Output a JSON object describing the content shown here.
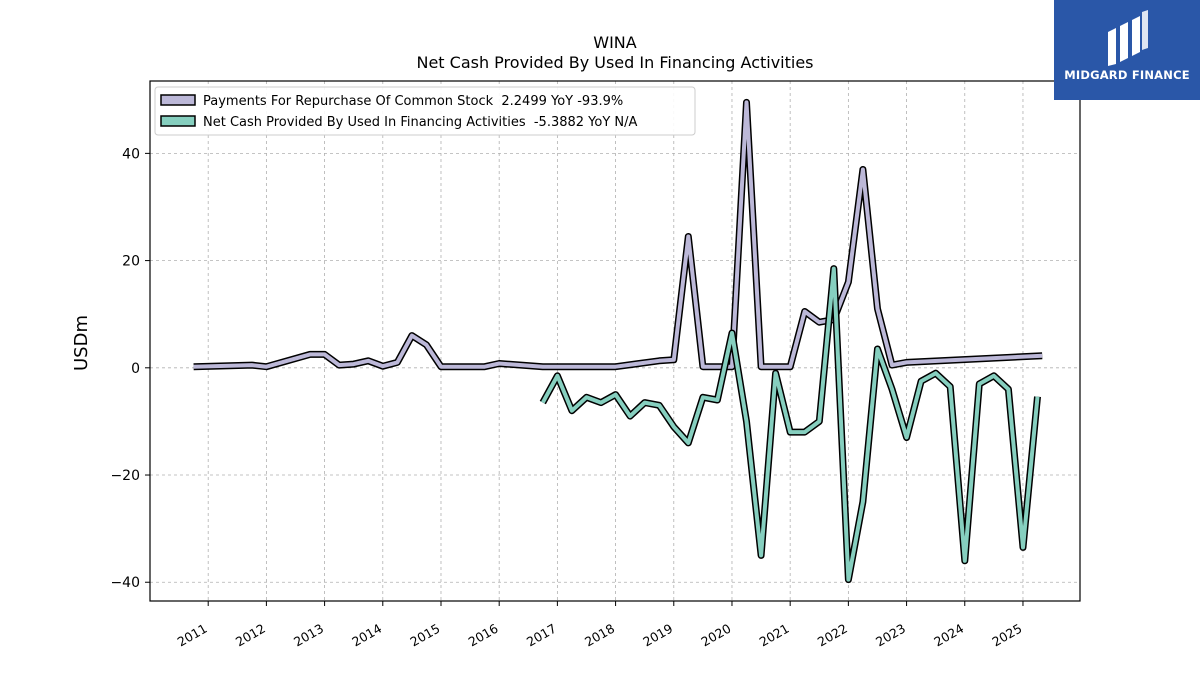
{
  "chart_data": {
    "type": "line",
    "title": "WINA",
    "subtitle": "Net Cash Provided By Used In Financing Activities",
    "ylabel": "USDm",
    "xlabel": "",
    "xlim": [
      2010.0,
      2025.98
    ],
    "ylim": [
      -43.5,
      53.5
    ],
    "yticks": [
      -40,
      -20,
      0,
      20,
      40
    ],
    "ytick_labels": [
      "−40",
      "−20",
      "0",
      "20",
      "40"
    ],
    "xticks": [
      2011,
      2012,
      2013,
      2014,
      2015,
      2016,
      2017,
      2018,
      2019,
      2020,
      2021,
      2022,
      2023,
      2024,
      2025
    ],
    "xtick_labels": [
      "2011",
      "2012",
      "2013",
      "2014",
      "2015",
      "2016",
      "2017",
      "2018",
      "2019",
      "2020",
      "2021",
      "2022",
      "2023",
      "2024",
      "2025"
    ],
    "grid": true,
    "legend_position": "top-left",
    "series": [
      {
        "name": "Payments For Repurchase Of Common Stock",
        "legend_label": "Payments For Repurchase Of Common Stock  2.2499 YoY -93.9%",
        "color": "#bcb8d8",
        "x": [
          2010.75,
          2011.75,
          2012.0,
          2012.75,
          2013.0,
          2013.25,
          2013.5,
          2013.75,
          2014.0,
          2014.25,
          2014.5,
          2014.75,
          2015.0,
          2015.75,
          2016.0,
          2016.75,
          2017.0,
          2017.75,
          2018.0,
          2018.75,
          2019.0,
          2019.25,
          2019.5,
          2019.75,
          2020.0,
          2020.25,
          2020.5,
          2020.75,
          2021.0,
          2021.25,
          2021.5,
          2021.75,
          2022.0,
          2022.25,
          2022.5,
          2022.75,
          2023.0,
          2025.33
        ],
        "y": [
          0.2,
          0.5,
          0.2,
          2.5,
          2.5,
          0.5,
          0.7,
          1.3,
          0.3,
          1.0,
          6.0,
          4.3,
          0.2,
          0.2,
          0.8,
          0.2,
          0.2,
          0.2,
          0.2,
          1.3,
          1.5,
          24.5,
          0.2,
          0.2,
          0.2,
          49.5,
          0.2,
          0.2,
          0.2,
          10.5,
          8.5,
          9.0,
          16.0,
          37.0,
          11.0,
          0.5,
          1.0,
          2.25
        ]
      },
      {
        "name": "Net Cash Provided By Used In Financing Activities",
        "legend_label": "Net Cash Provided By Used In Financing Activities  -5.3882 YoY N/A",
        "color": "#86cfbf",
        "x": [
          2016.75,
          2017.0,
          2017.25,
          2017.5,
          2017.75,
          2018.0,
          2018.25,
          2018.5,
          2018.75,
          2019.0,
          2019.25,
          2019.5,
          2019.75,
          2020.0,
          2020.25,
          2020.5,
          2020.75,
          2021.0,
          2021.25,
          2021.5,
          2021.75,
          2022.0,
          2022.25,
          2022.5,
          2022.75,
          2023.0,
          2023.25,
          2023.5,
          2023.75,
          2024.0,
          2024.25,
          2024.5,
          2024.75,
          2025.0,
          2025.25
        ],
        "y": [
          -6.5,
          -1.5,
          -8.0,
          -5.5,
          -6.5,
          -5.0,
          -9.0,
          -6.5,
          -7.0,
          -11.0,
          -14.0,
          -5.5,
          -6.0,
          6.5,
          -10.0,
          -35.0,
          -1.0,
          -12.0,
          -12.0,
          -10.0,
          18.5,
          -39.5,
          -25.0,
          3.5,
          -4.0,
          -13.0,
          -2.5,
          -1.0,
          -3.5,
          -36.0,
          -3.0,
          -1.5,
          -4.0,
          -33.5,
          -5.39
        ]
      }
    ]
  },
  "brand": {
    "name": "MIDGARD FINANCE",
    "background": "#2a57a8"
  }
}
